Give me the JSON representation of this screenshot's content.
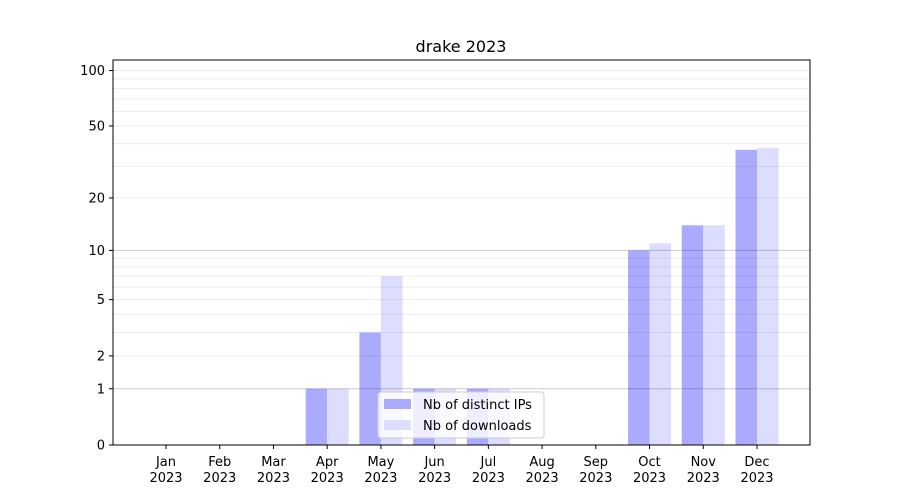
{
  "chart_data": {
    "type": "bar",
    "title": "drake 2023",
    "xlabel": "",
    "ylabel": "",
    "yscale": "log(1+y)",
    "ylim": [
      0,
      114
    ],
    "yticks": [
      0,
      1,
      2,
      5,
      10,
      20,
      50,
      100
    ],
    "grid": true,
    "legend_position": "lower center",
    "categories": [
      "Jan\n2023",
      "Feb\n2023",
      "Mar\n2023",
      "Apr\n2023",
      "May\n2023",
      "Jun\n2023",
      "Jul\n2023",
      "Aug\n2023",
      "Sep\n2023",
      "Oct\n2023",
      "Nov\n2023",
      "Dec\n2023"
    ],
    "series": [
      {
        "name": "Nb of distinct IPs",
        "color": "#aaaaff",
        "values": [
          0,
          0,
          0,
          1,
          3,
          1,
          1,
          0,
          0,
          10,
          14,
          37
        ]
      },
      {
        "name": "Nb of downloads",
        "color": "#ddddff",
        "values": [
          0,
          0,
          0,
          1,
          7,
          1,
          1,
          0,
          0,
          11,
          14,
          38
        ]
      }
    ]
  }
}
